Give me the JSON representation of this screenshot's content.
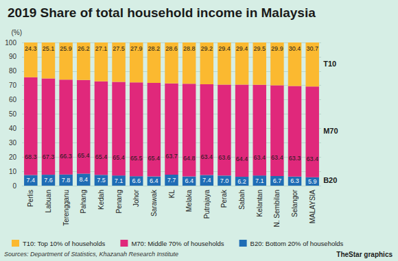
{
  "chart_data": {
    "type": "bar",
    "title": "2019 Share of total household income in Malaysia",
    "ylabel": "(%)",
    "categories": [
      "Perlis",
      "Labuan",
      "Terengganu",
      "Pahang",
      "Kedah",
      "Penang",
      "Johor",
      "Sarawak",
      "KL",
      "Melaka",
      "Putrajaya",
      "Perak",
      "Sabah",
      "Kelantan",
      "N. Sembilan",
      "Selangor",
      "MALAYSIA"
    ],
    "series": [
      {
        "name": "B20: Bottom 20% of households",
        "color": "#1f6db5",
        "values": [
          7.4,
          7.6,
          7.8,
          8.4,
          7.5,
          7.1,
          6.6,
          6.4,
          7.7,
          6.4,
          7.4,
          7.0,
          6.2,
          7.1,
          6.7,
          6.3,
          5.9
        ],
        "value_labels": [
          "7.4",
          "7.6",
          "7.8",
          "8.4",
          "7.5",
          "7.1",
          "6.6",
          "6.4",
          "7.7",
          "6.4",
          "7.4",
          "7.0",
          "6.2",
          "7.1",
          "6.7",
          "6.3",
          "5.9"
        ]
      },
      {
        "name": "M70: Middle 70% of households",
        "color": "#e0287b",
        "values": [
          68.3,
          67.3,
          66.3,
          65.4,
          65.4,
          65.4,
          65.5,
          65.4,
          63.7,
          64.8,
          63.4,
          63.6,
          64.4,
          63.4,
          63.4,
          63.3,
          63.4
        ]
      },
      {
        "name": "T10: Top 10% of households",
        "color": "#fbb930",
        "values": [
          24.3,
          25.1,
          25.9,
          26.2,
          27.1,
          27.5,
          27.9,
          28.2,
          28.6,
          28.8,
          29.2,
          29.4,
          29.4,
          29.5,
          29.9,
          30.4,
          30.7
        ]
      }
    ],
    "annotations": [
      "B20",
      "M70",
      "T10"
    ],
    "ylim": [
      0,
      100
    ],
    "yticks": [
      0,
      10,
      20,
      30,
      40,
      50,
      60,
      70,
      80,
      90,
      100
    ],
    "stacked": true,
    "data_labels": true,
    "grid": true,
    "legend": "bottom",
    "source": "Sources: Department of Statistics, Khazanah Research Institute",
    "credit": "TheStar graphics"
  }
}
